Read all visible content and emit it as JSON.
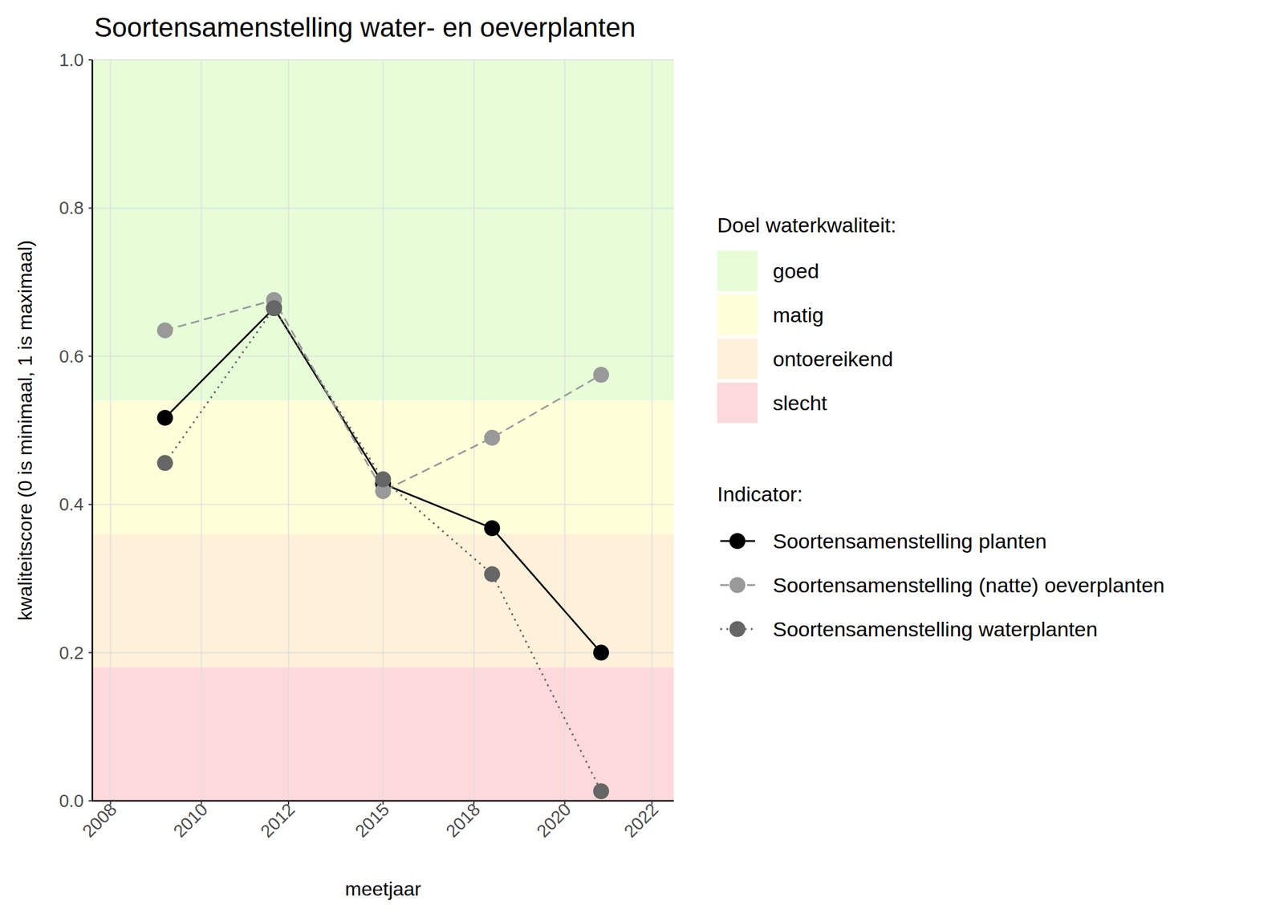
{
  "chart_data": {
    "type": "line",
    "title": "Soortensamenstelling water- en oeverplanten",
    "x_label": "meetjaar",
    "y_label": "kwaliteitscore (0 is minimaal, 1 is maximaal)",
    "x": [
      2009,
      2012,
      2015,
      2018,
      2021
    ],
    "xlim": [
      2007,
      2023
    ],
    "xticks": [
      {
        "value": 2007.5,
        "label": "2008"
      },
      2010,
      {
        "value": 2012.4,
        "label": "2012"
      },
      2015,
      {
        "value": 2017.5,
        "label": "2018"
      },
      2020,
      {
        "value": 2022.4,
        "label": "2022"
      }
    ],
    "ylim": [
      0,
      1
    ],
    "yticks": [
      {
        "value": 0,
        "label": "0.0"
      },
      0.2,
      0.4,
      0.6,
      0.8,
      {
        "value": 1,
        "label": "1.0"
      }
    ],
    "grid": true,
    "legend": "right",
    "bands_title": "Doel waterkwaliteit:",
    "bands": [
      {
        "name": "goed",
        "from": 0.54,
        "to": 1,
        "color": "#e6fdd8"
      },
      {
        "name": "matig",
        "from": 0.36,
        "to": 0.54,
        "color": "#fefed9"
      },
      {
        "name": "ontoereikend",
        "from": 0.18,
        "to": 0.36,
        "color": "#fef0d9"
      },
      {
        "name": "slecht",
        "from": 0,
        "to": 0.18,
        "color": "#fed9dc"
      }
    ],
    "legend_title": "Indicator:",
    "series": [
      {
        "name": "Soortensamenstelling planten",
        "color": "#000000",
        "line_style": "solid",
        "marker": "circle",
        "values": [
          0.517,
          0.665,
          0.428,
          0.368,
          0.2
        ]
      },
      {
        "name": "Soortensamenstelling (natte) oeverplanten",
        "color": "#999999",
        "line_style": "dashed",
        "marker": "circle",
        "values": [
          0.635,
          0.676,
          0.418,
          0.49,
          0.575
        ]
      },
      {
        "name": "Soortensamenstelling waterplanten",
        "color": "#666666",
        "line_style": "dotted",
        "marker": "circle",
        "values": [
          0.456,
          0.665,
          0.434,
          0.306,
          0.013
        ]
      }
    ]
  }
}
